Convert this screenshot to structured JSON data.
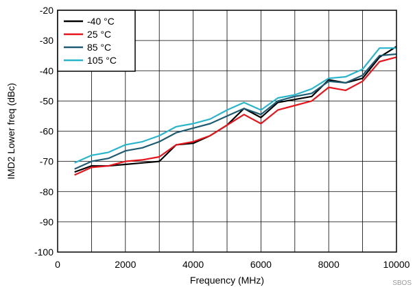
{
  "chart_data": {
    "type": "line",
    "xlabel": "Frequency (MHz)",
    "ylabel": "IMD2 Lower freq (dBc)",
    "xlim": [
      0,
      10000
    ],
    "ylim": [
      -100,
      -20
    ],
    "xticks": [
      0,
      2000,
      4000,
      6000,
      8000,
      10000
    ],
    "yticks": [
      -100,
      -90,
      -80,
      -70,
      -60,
      -50,
      -40,
      -30,
      -20
    ],
    "grid": true,
    "legend_position": "top-left",
    "source_note": "SBOS",
    "series": [
      {
        "name": "-40 °C",
        "color": "#000000",
        "x": [
          500,
          1000,
          1500,
          2000,
          2500,
          3000,
          3500,
          4000,
          4500,
          5000,
          5500,
          6000,
          6500,
          7000,
          7500,
          8000,
          8500,
          9000,
          9500,
          10000
        ],
        "y": [
          -73.5,
          -71.5,
          -71.5,
          -71,
          -70.5,
          -70,
          -64.5,
          -64,
          -61.5,
          -58,
          -52.5,
          -55.5,
          -50.5,
          -49.5,
          -48.5,
          -43,
          -44,
          -42.5,
          -35.5,
          -32
        ]
      },
      {
        "name": "25 °C",
        "color": "#e8141c",
        "x": [
          500,
          1000,
          1500,
          2000,
          2500,
          3000,
          3500,
          4000,
          4500,
          5000,
          5500,
          6000,
          6500,
          7000,
          7500,
          8000,
          8500,
          9000,
          9500,
          10000
        ],
        "y": [
          -74.5,
          -72,
          -71.5,
          -70,
          -69.5,
          -68.5,
          -64.5,
          -63.5,
          -61.5,
          -58,
          -54.5,
          -57.5,
          -53,
          -51.5,
          -50,
          -45.5,
          -46.5,
          -43.5,
          -37,
          -35.5
        ]
      },
      {
        "name": "85 °C",
        "color": "#1d5b73",
        "x": [
          500,
          1000,
          1500,
          2000,
          2500,
          3000,
          3500,
          4000,
          4500,
          5000,
          5500,
          6000,
          6500,
          7000,
          7500,
          8000,
          8500,
          9000,
          9500,
          10000
        ],
        "y": [
          -72.5,
          -70,
          -69,
          -66.5,
          -65.5,
          -63.5,
          -60.5,
          -59,
          -57.5,
          -55,
          -52.5,
          -54.5,
          -50,
          -48.5,
          -47.5,
          -43.5,
          -44,
          -41.5,
          -35,
          -34.5
        ]
      },
      {
        "name": "105 °C",
        "color": "#27b5cc",
        "x": [
          500,
          1000,
          1500,
          2000,
          2500,
          3000,
          3500,
          4000,
          4500,
          5000,
          5500,
          6000,
          6500,
          7000,
          7500,
          8000,
          8500,
          9000,
          9500,
          10000
        ],
        "y": [
          -70.5,
          -68,
          -67,
          -64.5,
          -63.5,
          -61.5,
          -58.5,
          -57.5,
          -56,
          -53,
          -50.5,
          -53,
          -49,
          -48,
          -46,
          -42.5,
          -42,
          -39.5,
          -32.5,
          -32.5
        ]
      }
    ]
  }
}
